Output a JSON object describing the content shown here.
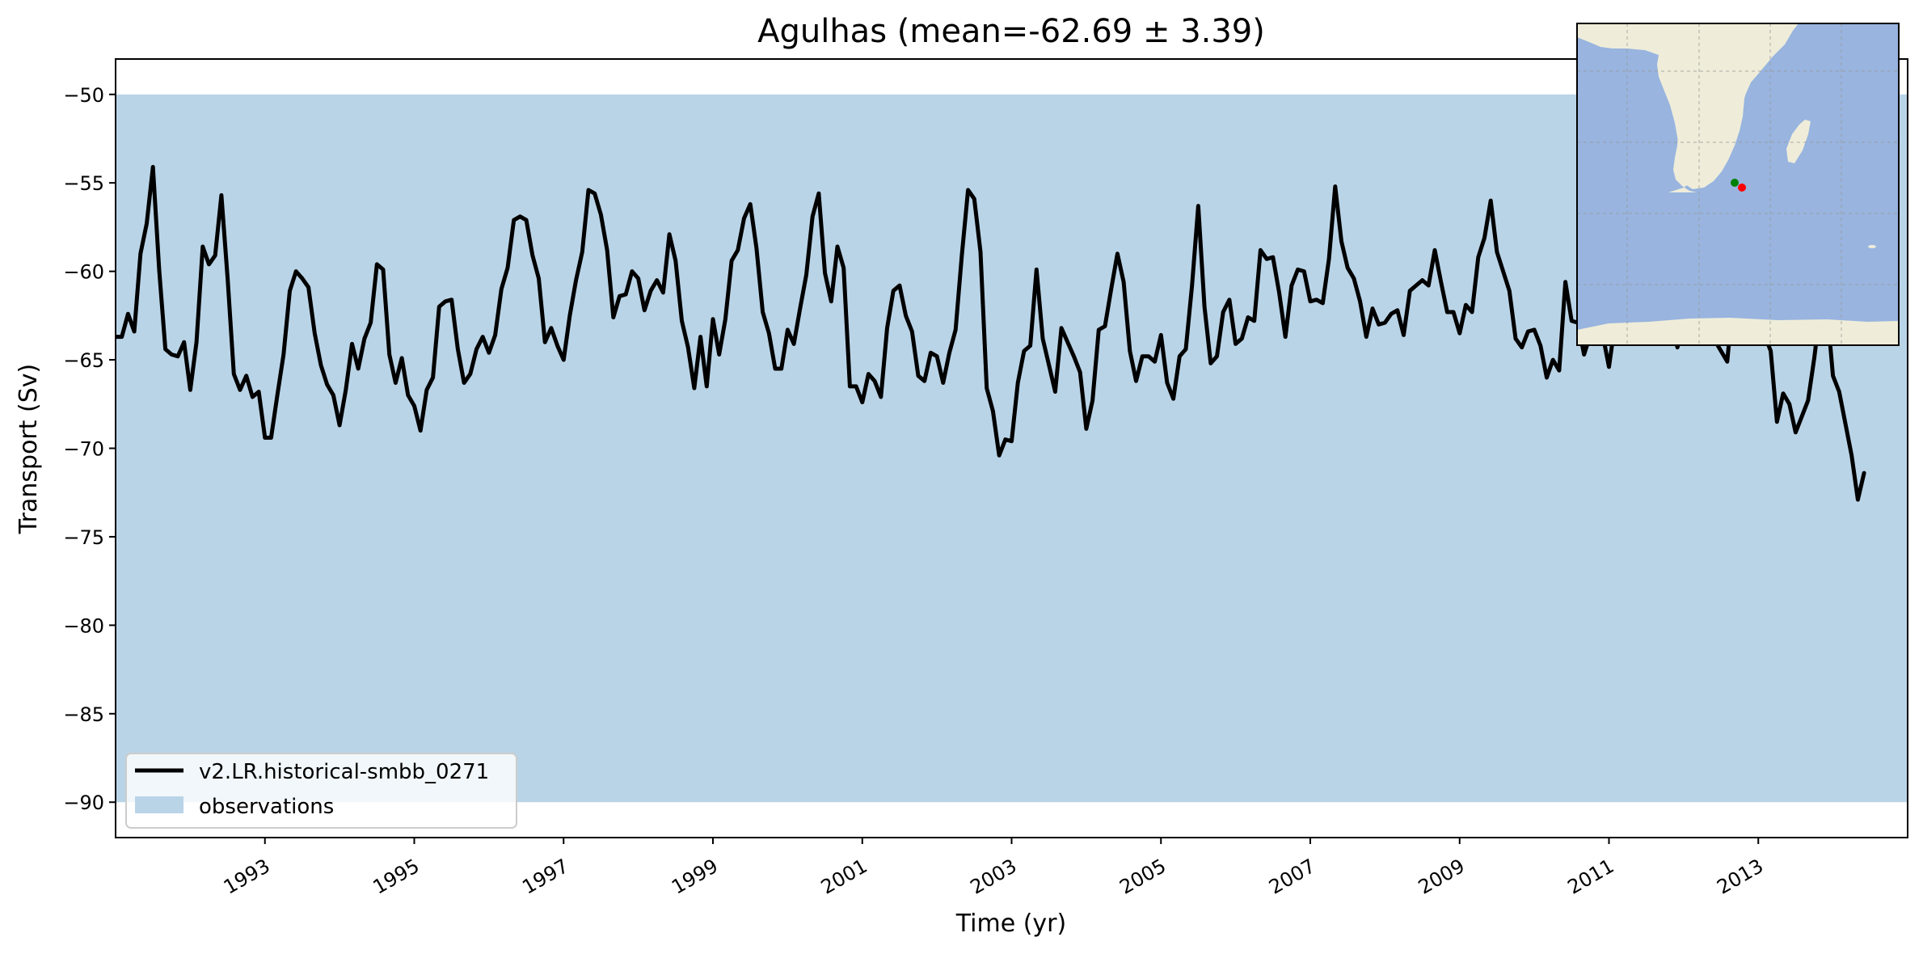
{
  "chart_data": {
    "type": "line",
    "title": "Agulhas (mean=-62.69 ± 3.39)",
    "xlabel": "Time (yr)",
    "ylabel": "Transport (Sv)",
    "xlim": [
      1991.0,
      2015.0
    ],
    "ylim": [
      -92.0,
      -48.0
    ],
    "x_ticks": [
      1993,
      1995,
      1997,
      1999,
      2001,
      2003,
      2005,
      2007,
      2009,
      2011,
      2013
    ],
    "x_tick_labels": [
      "1993",
      "1995",
      "1997",
      "1999",
      "2001",
      "2003",
      "2005",
      "2007",
      "2009",
      "2011",
      "2013"
    ],
    "y_ticks": [
      -90,
      -85,
      -80,
      -75,
      -70,
      -65,
      -60,
      -55,
      -50
    ],
    "y_tick_labels": [
      "−90",
      "−85",
      "−80",
      "−75",
      "−70",
      "−65",
      "−60",
      "−55",
      "−50"
    ],
    "legend_position": "lower-left",
    "grid": false,
    "observation_band": {
      "name": "observations",
      "y_min": -90,
      "y_max": -50,
      "color": "#bad4e7"
    },
    "series": [
      {
        "name": "v2.LR.historical-smbb_0271",
        "color": "#000000",
        "start": 1991.0,
        "step_months": 1,
        "values": [
          -63.7,
          -63.7,
          -62.4,
          -63.4,
          -59.0,
          -57.3,
          -54.1,
          -59.9,
          -64.4,
          -64.7,
          -64.8,
          -64.0,
          -66.7,
          -64.0,
          -58.6,
          -59.6,
          -59.1,
          -55.7,
          -60.4,
          -65.8,
          -66.7,
          -65.9,
          -67.1,
          -66.8,
          -69.4,
          -69.4,
          -67.0,
          -64.7,
          -61.1,
          -60.0,
          -60.4,
          -60.9,
          -63.5,
          -65.3,
          -66.4,
          -67.0,
          -68.7,
          -66.7,
          -64.1,
          -65.5,
          -63.8,
          -62.9,
          -59.6,
          -59.9,
          -64.7,
          -66.3,
          -64.9,
          -67.0,
          -67.6,
          -69.0,
          -66.7,
          -66.0,
          -62.0,
          -61.7,
          -61.6,
          -64.4,
          -66.3,
          -65.8,
          -64.4,
          -63.7,
          -64.6,
          -63.6,
          -61.0,
          -59.8,
          -57.1,
          -56.9,
          -57.1,
          -59.1,
          -60.4,
          -64.0,
          -63.2,
          -64.2,
          -65.0,
          -62.5,
          -60.5,
          -58.9,
          -55.4,
          -55.6,
          -56.8,
          -58.8,
          -62.6,
          -61.4,
          -61.3,
          -60.0,
          -60.4,
          -62.2,
          -61.1,
          -60.5,
          -61.2,
          -57.9,
          -59.4,
          -62.8,
          -64.3,
          -66.6,
          -63.7,
          -66.5,
          -62.7,
          -64.7,
          -62.7,
          -59.4,
          -58.8,
          -57.0,
          -56.2,
          -58.7,
          -62.3,
          -63.5,
          -65.5,
          -65.5,
          -63.3,
          -64.1,
          -62.1,
          -60.2,
          -56.9,
          -55.6,
          -60.1,
          -61.7,
          -58.6,
          -59.8,
          -66.5,
          -66.5,
          -67.4,
          -65.8,
          -66.2,
          -67.1,
          -63.2,
          -61.1,
          -60.8,
          -62.5,
          -63.4,
          -65.9,
          -66.2,
          -64.6,
          -64.8,
          -66.3,
          -64.6,
          -63.3,
          -59.1,
          -55.4,
          -55.9,
          -58.9,
          -66.6,
          -67.9,
          -70.4,
          -69.5,
          -69.6,
          -66.3,
          -64.5,
          -64.2,
          -59.9,
          -63.8,
          -65.3,
          -66.8,
          -63.2,
          -64.0,
          -64.8,
          -65.7,
          -68.9,
          -67.3,
          -63.3,
          -63.1,
          -61.0,
          -59.0,
          -60.6,
          -64.5,
          -66.2,
          -64.8,
          -64.8,
          -65.1,
          -63.6,
          -66.3,
          -67.2,
          -64.8,
          -64.4,
          -60.8,
          -56.3,
          -62.0,
          -65.2,
          -64.8,
          -62.3,
          -61.6,
          -64.1,
          -63.8,
          -62.6,
          -62.8,
          -58.8,
          -59.3,
          -59.2,
          -61.2,
          -63.7,
          -60.8,
          -59.9,
          -60.0,
          -61.7,
          -61.6,
          -61.8,
          -59.3,
          -55.2,
          -58.3,
          -59.8,
          -60.4,
          -61.7,
          -63.7,
          -62.1,
          -63.0,
          -62.9,
          -62.4,
          -62.2,
          -63.6,
          -61.1,
          -60.8,
          -60.5,
          -60.8,
          -58.8,
          -60.6,
          -62.3,
          -62.3,
          -63.5,
          -61.9,
          -62.3,
          -59.2,
          -58.1,
          -56.0,
          -58.9,
          -60.0,
          -61.1,
          -63.8,
          -64.3,
          -63.4,
          -63.3,
          -64.2,
          -66.0,
          -65.0,
          -65.6,
          -60.6,
          -62.8,
          -62.9,
          -64.7,
          -63.6,
          -62.8,
          -63.6,
          -65.4,
          -62.9,
          -62.5,
          -63.0,
          -62.1,
          -62.9,
          -63.8,
          -62.8,
          -63.4,
          -62.2,
          -62.9,
          -64.3,
          -62.9,
          -62.4,
          -62.4,
          -63.5,
          -63.2,
          -63.9,
          -64.5,
          -65.1,
          -61.3,
          -61.4,
          -60.9,
          -61.0,
          -62.4,
          -63.6,
          -64.5,
          -68.5,
          -66.9,
          -67.5,
          -69.1,
          -68.2,
          -67.3,
          -64.9,
          -62.0,
          -61.9,
          -65.9,
          -66.8,
          -68.6,
          -70.4,
          -72.9,
          -71.4
        ]
      }
    ]
  },
  "inset_map": {
    "land_color": "#efedd9",
    "ocean_color": "#98b4df",
    "markers": [
      {
        "name": "start-point",
        "color": "#008000"
      },
      {
        "name": "end-point",
        "color": "#ff0000"
      }
    ]
  }
}
